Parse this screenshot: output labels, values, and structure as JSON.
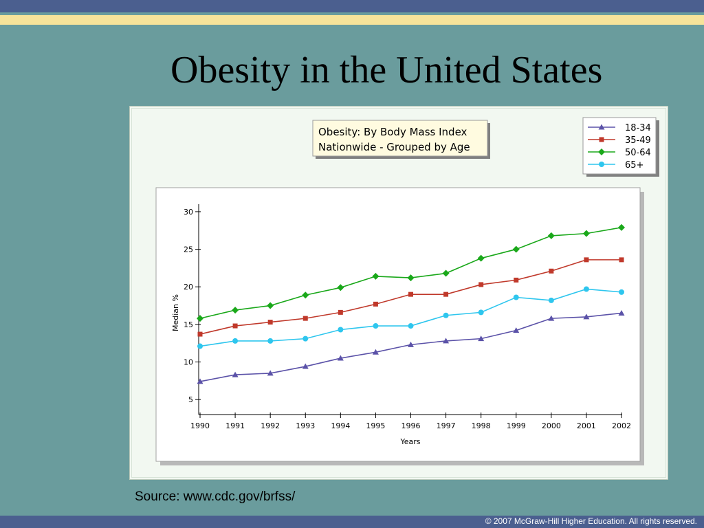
{
  "slide": {
    "title": "Obesity in the United States",
    "source": "Source: www.cdc.gov/brfss/",
    "copyright": "© 2007 McGraw-Hill Higher Education. All rights reserved."
  },
  "colors": {
    "background": "#6a9c9d",
    "top_band": "#4b5f8f",
    "stripe": "#f7e39a",
    "chart_bg": "#f2f8f1",
    "plot_bg": "#ffffff",
    "title_box": "#fffbe0"
  },
  "chart_data": {
    "type": "line",
    "title": "Obesity: By Body Mass Index",
    "subtitle": "Nationwide - Grouped by Age",
    "xlabel": "Years",
    "ylabel": "Median %",
    "categories": [
      "1990",
      "1991",
      "1992",
      "1993",
      "1994",
      "1995",
      "1996",
      "1997",
      "1998",
      "1999",
      "2000",
      "2001",
      "2002"
    ],
    "y_ticks": [
      5,
      10,
      15,
      20,
      25,
      30
    ],
    "ylim": [
      3,
      31
    ],
    "grid": false,
    "legend_position": "top-right",
    "series": [
      {
        "name": "18-34",
        "color": "#5b52a8",
        "marker": "triangle",
        "values": [
          7.4,
          8.3,
          8.5,
          9.4,
          10.5,
          11.3,
          12.3,
          12.8,
          13.1,
          14.2,
          15.8,
          16.0,
          16.5
        ]
      },
      {
        "name": "35-49",
        "color": "#c0392b",
        "marker": "square",
        "values": [
          13.7,
          14.8,
          15.3,
          15.8,
          16.6,
          17.7,
          19.0,
          19.0,
          20.3,
          20.9,
          22.1,
          23.6,
          23.6
        ]
      },
      {
        "name": "50-64",
        "color": "#1aa81a",
        "marker": "diamond",
        "values": [
          15.8,
          16.9,
          17.5,
          18.9,
          19.9,
          21.4,
          21.2,
          21.8,
          23.8,
          25.0,
          26.8,
          27.1,
          27.9
        ]
      },
      {
        "name": "65+",
        "color": "#2ec6ee",
        "marker": "circle",
        "values": [
          12.1,
          12.8,
          12.8,
          13.1,
          14.3,
          14.8,
          14.8,
          16.2,
          16.6,
          18.6,
          18.2,
          19.7,
          19.3
        ]
      }
    ]
  }
}
